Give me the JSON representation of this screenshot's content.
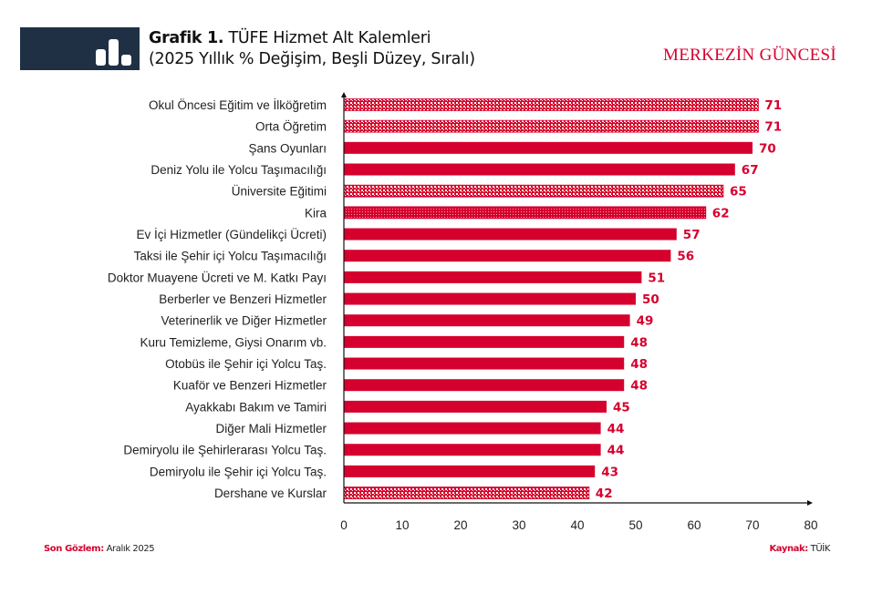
{
  "header": {
    "title_bold": "Grafik 1.",
    "title_rest": "TÜFE Hizmet Alt Kalemleri",
    "subtitle": "(2025 Yıllık % Değişim, Beşli Düzey, Sıralı)",
    "icon": "bar-chart-icon",
    "brand": "MERKEZİN GÜNCESİ"
  },
  "footer": {
    "last_obs_label": "Son Gözlem:",
    "last_obs_value": "Aralık 2025",
    "source_label": "Kaynak:",
    "source_value": "TÜİK"
  },
  "colors": {
    "bar": "#d6002e",
    "header_box": "#1f3045"
  },
  "chart_data": {
    "type": "bar",
    "orientation": "horizontal",
    "categories": [
      "Okul Öncesi Eğitim ve İlköğretim",
      "Orta Öğretim",
      "Şans Oyunları",
      "Deniz Yolu ile Yolcu Taşımacılığı",
      "Üniversite Eğitimi",
      "Kira",
      "Ev İçi Hizmetler (Gündelikçi Ücreti)",
      "Taksi ile Şehir içi Yolcu Taşımacılığı",
      "Doktor Muayene Ücreti ve M. Katkı Payı",
      "Berberler ve Benzeri Hizmetler",
      "Veterinerlik ve Diğer Hizmetler",
      "Kuru Temizleme, Giysi Onarım vb.",
      "Otobüs ile Şehir içi Yolcu Taş.",
      "Kuaför ve Benzeri Hizmetler",
      "Ayakkabı Bakım ve Tamiri",
      "Diğer Mali Hizmetler",
      "Demiryolu ile Şehirlerarası Yolcu Taş.",
      "Demiryolu ile Şehir içi Yolcu Taş.",
      "Dershane ve Kurslar"
    ],
    "values": [
      71,
      71,
      70,
      67,
      65,
      62,
      57,
      56,
      51,
      50,
      49,
      48,
      48,
      48,
      45,
      44,
      44,
      43,
      42
    ],
    "fill_styles": [
      "pattern-light",
      "pattern-light",
      "solid",
      "solid",
      "pattern-light",
      "pattern-dots",
      "solid",
      "solid",
      "solid",
      "solid",
      "solid",
      "solid",
      "solid",
      "solid",
      "solid",
      "solid",
      "solid",
      "solid",
      "pattern-light"
    ],
    "xlim": [
      0,
      80
    ],
    "xticks": [
      0,
      10,
      20,
      30,
      40,
      50,
      60,
      70,
      80
    ],
    "grid": false,
    "data_labels": true
  }
}
